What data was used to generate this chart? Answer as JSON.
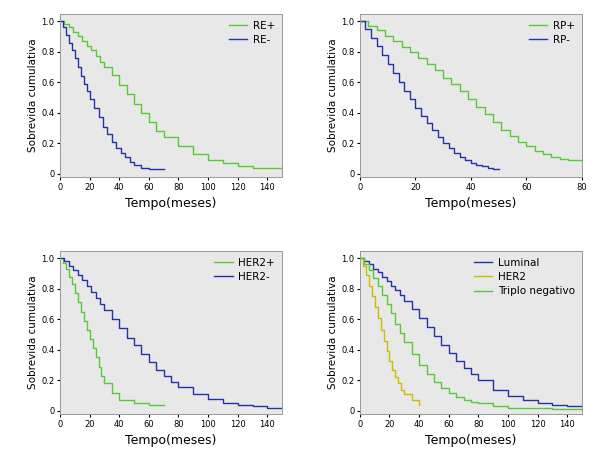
{
  "fig_facecolor": "#ffffff",
  "axes_bg_color": "#e8e8e8",
  "ylabel": "Sobrevida cumulativa",
  "xlabel": "Tempo(meses)",
  "ylabel_fontsize": 7.5,
  "xlabel_fontsize": 9,
  "tick_fontsize": 6,
  "legend_fontsize": 7.5,
  "subplots": [
    {
      "xlim": [
        0,
        150
      ],
      "ylim": [
        -0.02,
        1.05
      ],
      "xticks": [
        0,
        20,
        40,
        60,
        80,
        100,
        120,
        140
      ],
      "yticks": [
        0.0,
        0.2,
        0.4,
        0.6,
        0.8,
        1.0
      ],
      "series": [
        {
          "label": "RE+",
          "color": "#55cc33",
          "x": [
            0,
            3,
            6,
            9,
            12,
            15,
            18,
            21,
            24,
            27,
            30,
            35,
            40,
            45,
            50,
            55,
            60,
            65,
            70,
            80,
            90,
            100,
            110,
            120,
            130,
            140,
            150
          ],
          "y": [
            1.0,
            0.98,
            0.96,
            0.93,
            0.9,
            0.87,
            0.84,
            0.81,
            0.77,
            0.73,
            0.7,
            0.65,
            0.58,
            0.52,
            0.46,
            0.4,
            0.34,
            0.28,
            0.24,
            0.18,
            0.13,
            0.09,
            0.07,
            0.05,
            0.04,
            0.04,
            0.04
          ]
        },
        {
          "label": "RE-",
          "color": "#2233aa",
          "x": [
            0,
            2,
            4,
            6,
            8,
            10,
            12,
            14,
            16,
            18,
            20,
            23,
            26,
            29,
            32,
            35,
            38,
            41,
            44,
            47,
            50,
            55,
            60,
            65,
            70
          ],
          "y": [
            1.0,
            0.96,
            0.91,
            0.86,
            0.81,
            0.76,
            0.7,
            0.64,
            0.59,
            0.54,
            0.49,
            0.43,
            0.37,
            0.31,
            0.26,
            0.21,
            0.17,
            0.14,
            0.11,
            0.08,
            0.06,
            0.04,
            0.03,
            0.03,
            0.03
          ]
        }
      ]
    },
    {
      "xlim": [
        0,
        80
      ],
      "ylim": [
        -0.02,
        1.05
      ],
      "xticks": [
        0,
        20,
        40,
        60,
        80
      ],
      "yticks": [
        0.0,
        0.2,
        0.4,
        0.6,
        0.8,
        1.0
      ],
      "series": [
        {
          "label": "RP+",
          "color": "#55cc33",
          "x": [
            0,
            3,
            6,
            9,
            12,
            15,
            18,
            21,
            24,
            27,
            30,
            33,
            36,
            39,
            42,
            45,
            48,
            51,
            54,
            57,
            60,
            63,
            66,
            69,
            72,
            75,
            78,
            80
          ],
          "y": [
            1.0,
            0.97,
            0.94,
            0.9,
            0.87,
            0.83,
            0.8,
            0.76,
            0.72,
            0.68,
            0.63,
            0.59,
            0.54,
            0.49,
            0.44,
            0.39,
            0.34,
            0.29,
            0.25,
            0.21,
            0.18,
            0.15,
            0.13,
            0.11,
            0.1,
            0.09,
            0.09,
            0.09
          ]
        },
        {
          "label": "RP-",
          "color": "#2233aa",
          "x": [
            0,
            2,
            4,
            6,
            8,
            10,
            12,
            14,
            16,
            18,
            20,
            22,
            24,
            26,
            28,
            30,
            32,
            34,
            36,
            38,
            40,
            42,
            44,
            46,
            48,
            50
          ],
          "y": [
            1.0,
            0.95,
            0.89,
            0.84,
            0.78,
            0.72,
            0.66,
            0.6,
            0.54,
            0.49,
            0.43,
            0.38,
            0.33,
            0.29,
            0.24,
            0.2,
            0.17,
            0.14,
            0.11,
            0.09,
            0.07,
            0.06,
            0.05,
            0.04,
            0.03,
            0.03
          ]
        }
      ]
    },
    {
      "xlim": [
        0,
        150
      ],
      "ylim": [
        -0.02,
        1.05
      ],
      "xticks": [
        0,
        20,
        40,
        60,
        80,
        100,
        120,
        140
      ],
      "yticks": [
        0.0,
        0.2,
        0.4,
        0.6,
        0.8,
        1.0
      ],
      "series": [
        {
          "label": "HER2+",
          "color": "#55cc33",
          "x": [
            0,
            2,
            4,
            6,
            8,
            10,
            12,
            14,
            16,
            18,
            20,
            22,
            24,
            26,
            28,
            30,
            35,
            40,
            50,
            60,
            70
          ],
          "y": [
            1.0,
            0.97,
            0.93,
            0.88,
            0.83,
            0.77,
            0.71,
            0.65,
            0.59,
            0.53,
            0.47,
            0.41,
            0.35,
            0.29,
            0.23,
            0.18,
            0.12,
            0.07,
            0.05,
            0.04,
            0.04
          ]
        },
        {
          "label": "HER2-",
          "color": "#2233aa",
          "x": [
            0,
            3,
            6,
            9,
            12,
            15,
            18,
            21,
            24,
            27,
            30,
            35,
            40,
            45,
            50,
            55,
            60,
            65,
            70,
            75,
            80,
            90,
            100,
            110,
            120,
            130,
            140,
            150
          ],
          "y": [
            1.0,
            0.98,
            0.95,
            0.92,
            0.89,
            0.86,
            0.82,
            0.78,
            0.74,
            0.7,
            0.66,
            0.6,
            0.54,
            0.48,
            0.43,
            0.37,
            0.32,
            0.27,
            0.23,
            0.19,
            0.16,
            0.11,
            0.08,
            0.05,
            0.04,
            0.03,
            0.02,
            0.02
          ]
        }
      ]
    },
    {
      "xlim": [
        0,
        150
      ],
      "ylim": [
        -0.02,
        1.05
      ],
      "xticks": [
        0,
        20,
        40,
        60,
        80,
        100,
        120,
        140
      ],
      "yticks": [
        0.0,
        0.2,
        0.4,
        0.6,
        0.8,
        1.0
      ],
      "series": [
        {
          "label": "Luminal",
          "color": "#2233aa",
          "x": [
            0,
            3,
            6,
            9,
            12,
            15,
            18,
            21,
            24,
            27,
            30,
            35,
            40,
            45,
            50,
            55,
            60,
            65,
            70,
            75,
            80,
            90,
            100,
            110,
            120,
            130,
            140,
            150
          ],
          "y": [
            1.0,
            0.98,
            0.96,
            0.93,
            0.91,
            0.88,
            0.85,
            0.82,
            0.79,
            0.76,
            0.72,
            0.67,
            0.61,
            0.55,
            0.49,
            0.43,
            0.38,
            0.33,
            0.28,
            0.24,
            0.2,
            0.14,
            0.1,
            0.07,
            0.05,
            0.04,
            0.03,
            0.03
          ]
        },
        {
          "label": "HER2",
          "color": "#ccbb00",
          "x": [
            0,
            2,
            4,
            6,
            8,
            10,
            12,
            14,
            16,
            18,
            20,
            22,
            24,
            26,
            28,
            30,
            35,
            40
          ],
          "y": [
            1.0,
            0.95,
            0.89,
            0.82,
            0.75,
            0.68,
            0.61,
            0.53,
            0.46,
            0.39,
            0.33,
            0.27,
            0.22,
            0.18,
            0.14,
            0.11,
            0.07,
            0.04
          ]
        },
        {
          "label": "Triplo negativo",
          "color": "#55cc33",
          "x": [
            0,
            3,
            6,
            9,
            12,
            15,
            18,
            21,
            24,
            27,
            30,
            35,
            40,
            45,
            50,
            55,
            60,
            65,
            70,
            75,
            80,
            90,
            100,
            110,
            120,
            130,
            140,
            150
          ],
          "y": [
            1.0,
            0.96,
            0.92,
            0.87,
            0.82,
            0.76,
            0.7,
            0.64,
            0.57,
            0.51,
            0.45,
            0.37,
            0.3,
            0.24,
            0.19,
            0.15,
            0.12,
            0.09,
            0.07,
            0.06,
            0.05,
            0.03,
            0.02,
            0.02,
            0.02,
            0.01,
            0.01,
            0.01
          ]
        }
      ]
    }
  ]
}
